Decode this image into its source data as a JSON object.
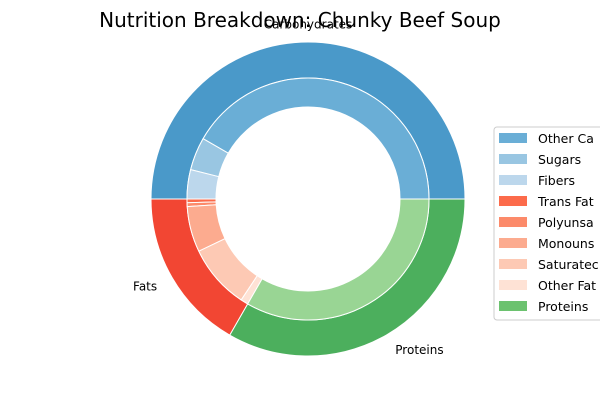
{
  "chart_data": {
    "type": "pie",
    "subtype": "nested-donut",
    "title": "Nutrition Breakdown:  Chunky Beef Soup",
    "outer_ring": [
      {
        "label": "Carbohydrates",
        "value": 50.0,
        "color": "#4a99c9"
      },
      {
        "label": "Fats",
        "value": 16.7,
        "color": "#f24633"
      },
      {
        "label": "Proteins",
        "value": 33.3,
        "color": "#4caf5d"
      }
    ],
    "inner_ring": [
      {
        "name": "Other Carbohydrates",
        "value": 41.7,
        "color": "#6aaed6"
      },
      {
        "name": "Sugars",
        "value": 4.4,
        "color": "#99c6e2"
      },
      {
        "name": "Fibers",
        "value": 3.9,
        "color": "#bcd7ec"
      },
      {
        "name": "Trans Fats",
        "value": 0.5,
        "color": "#fb6a4a"
      },
      {
        "name": "Polyunsaturated Fats",
        "value": 0.5,
        "color": "#fc8a6a"
      },
      {
        "name": "Monounsaturated Fats",
        "value": 6.1,
        "color": "#fcab8f"
      },
      {
        "name": "Saturated Fats",
        "value": 8.6,
        "color": "#fdc9b4"
      },
      {
        "name": "Other Fats",
        "value": 1.0,
        "color": "#fee2d5"
      },
      {
        "name": "Proteins",
        "value": 33.3,
        "color": "#99d594"
      }
    ],
    "legend": {
      "placement": "right",
      "entries": [
        {
          "label": "Other Ca",
          "color": "#6aaed6"
        },
        {
          "label": "Sugars",
          "color": "#99c6e2"
        },
        {
          "label": "Fibers",
          "color": "#bcd7ec"
        },
        {
          "label": "Trans Fat",
          "color": "#fc6b4b"
        },
        {
          "label": "Polyunsa",
          "color": "#fc8a6a"
        },
        {
          "label": "Monouns",
          "color": "#fcab8f"
        },
        {
          "label": "Saturatec",
          "color": "#fdc9b4"
        },
        {
          "label": "Other Fat",
          "color": "#fee2d5"
        },
        {
          "label": "Proteins",
          "color": "#6cc26f"
        }
      ]
    },
    "start_angle_deg": 0,
    "direction": "counterclockwise"
  }
}
